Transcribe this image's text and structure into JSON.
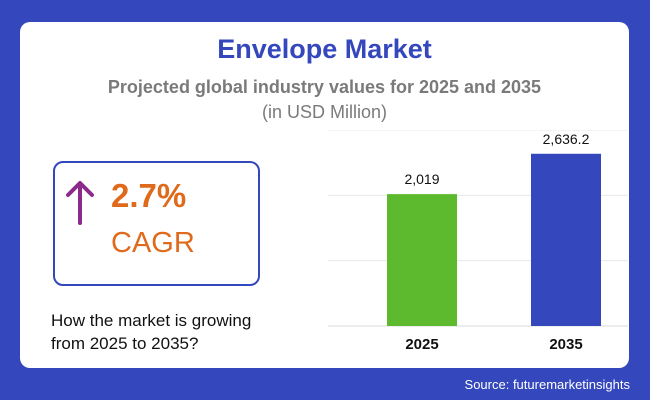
{
  "header": {
    "title": "Envelope Market",
    "subtitle": "Projected global industry values for 2025 and 2035",
    "units": "(in USD Million)"
  },
  "cagr": {
    "value": "2.7%",
    "label": "CAGR",
    "arrow_icon": "up-arrow-icon"
  },
  "question": "How the market is growing from 2025 to 2035?",
  "source": "Source: futuremarketinsights",
  "colors": {
    "background": "#3447bd",
    "bar_2025": "#5dba2f",
    "bar_2035": "#3447bd",
    "accent": "#e06a1b",
    "arrow": "#8b2a8b"
  },
  "chart_data": {
    "type": "bar",
    "title": "Envelope Market",
    "subtitle": "Projected global industry values for 2025 and 2035",
    "ylabel": "",
    "xlabel": "",
    "categories": [
      "2025",
      "2035"
    ],
    "values": [
      2019,
      2636.2
    ],
    "value_labels": [
      "2,019",
      "2,636.2"
    ],
    "ylim": [
      0,
      3000
    ],
    "grid": true,
    "legend": "none"
  }
}
